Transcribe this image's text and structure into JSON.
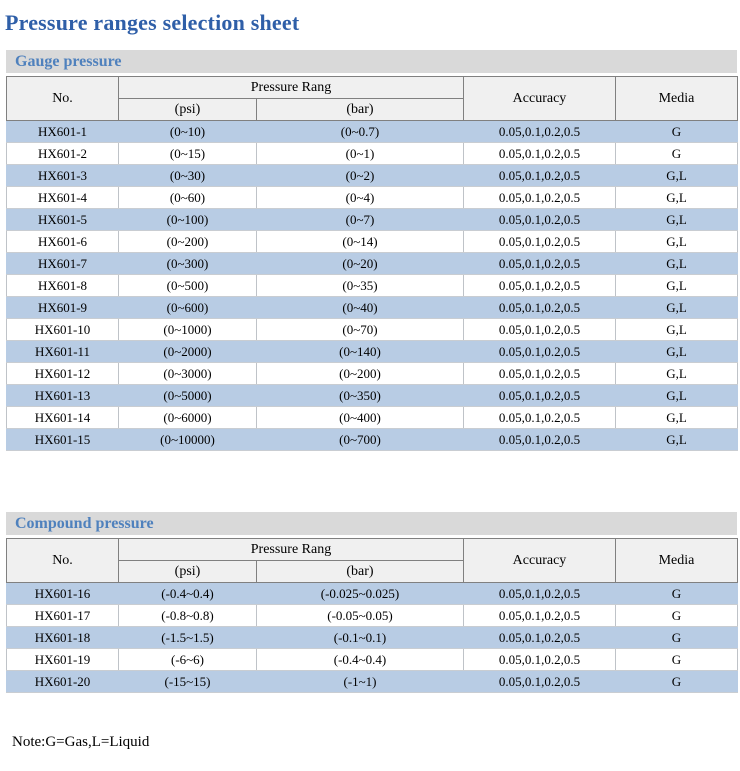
{
  "page": {
    "title": "Pressure ranges selection sheet",
    "note": "Note:G=Gas,L=Liquid"
  },
  "colors": {
    "title_blue": "#2f5fa8",
    "section_title_blue": "#4f81bd",
    "section_band_gray": "#d9d9d9",
    "row_alt_blue": "#b8cce4",
    "header_cell_gray": "#f0f0f0"
  },
  "tables": [
    {
      "section_title": "Gauge pressure",
      "headers": {
        "no": "No.",
        "pressure_range": "Pressure Rang",
        "psi": "(psi)",
        "bar": "(bar)",
        "accuracy": "Accuracy",
        "media": "Media"
      },
      "rows": [
        {
          "no": "HX601-1",
          "psi": "(0~10)",
          "bar": "(0~0.7)",
          "accuracy": "0.05,0.1,0.2,0.5",
          "media": "G"
        },
        {
          "no": "HX601-2",
          "psi": "(0~15)",
          "bar": "(0~1)",
          "accuracy": "0.05,0.1,0.2,0.5",
          "media": "G"
        },
        {
          "no": "HX601-3",
          "psi": "(0~30)",
          "bar": "(0~2)",
          "accuracy": "0.05,0.1,0.2,0.5",
          "media": "G,L"
        },
        {
          "no": "HX601-4",
          "psi": "(0~60)",
          "bar": "(0~4)",
          "accuracy": "0.05,0.1,0.2,0.5",
          "media": "G,L"
        },
        {
          "no": "HX601-5",
          "psi": "(0~100)",
          "bar": "(0~7)",
          "accuracy": "0.05,0.1,0.2,0.5",
          "media": "G,L"
        },
        {
          "no": "HX601-6",
          "psi": "(0~200)",
          "bar": "(0~14)",
          "accuracy": "0.05,0.1,0.2,0.5",
          "media": "G,L"
        },
        {
          "no": "HX601-7",
          "psi": "(0~300)",
          "bar": "(0~20)",
          "accuracy": "0.05,0.1,0.2,0.5",
          "media": "G,L"
        },
        {
          "no": "HX601-8",
          "psi": "(0~500)",
          "bar": "(0~35)",
          "accuracy": "0.05,0.1,0.2,0.5",
          "media": "G,L"
        },
        {
          "no": "HX601-9",
          "psi": "(0~600)",
          "bar": "(0~40)",
          "accuracy": "0.05,0.1,0.2,0.5",
          "media": "G,L"
        },
        {
          "no": "HX601-10",
          "psi": "(0~1000)",
          "bar": "(0~70)",
          "accuracy": "0.05,0.1,0.2,0.5",
          "media": "G,L"
        },
        {
          "no": "HX601-11",
          "psi": "(0~2000)",
          "bar": "(0~140)",
          "accuracy": "0.05,0.1,0.2,0.5",
          "media": "G,L"
        },
        {
          "no": "HX601-12",
          "psi": "(0~3000)",
          "bar": "(0~200)",
          "accuracy": "0.05,0.1,0.2,0.5",
          "media": "G,L"
        },
        {
          "no": "HX601-13",
          "psi": "(0~5000)",
          "bar": "(0~350)",
          "accuracy": "0.05,0.1,0.2,0.5",
          "media": "G,L"
        },
        {
          "no": "HX601-14",
          "psi": "(0~6000)",
          "bar": "(0~400)",
          "accuracy": "0.05,0.1,0.2,0.5",
          "media": "G,L"
        },
        {
          "no": "HX601-15",
          "psi": "(0~10000)",
          "bar": "(0~700)",
          "accuracy": "0.05,0.1,0.2,0.5",
          "media": "G,L"
        }
      ]
    },
    {
      "section_title": "Compound pressure",
      "headers": {
        "no": "No.",
        "pressure_range": "Pressure Rang",
        "psi": "(psi)",
        "bar": "(bar)",
        "accuracy": "Accuracy",
        "media": "Media"
      },
      "rows": [
        {
          "no": "HX601-16",
          "psi": "(-0.4~0.4)",
          "bar": "(-0.025~0.025)",
          "accuracy": "0.05,0.1,0.2,0.5",
          "media": "G"
        },
        {
          "no": "HX601-17",
          "psi": "(-0.8~0.8)",
          "bar": "(-0.05~0.05)",
          "accuracy": "0.05,0.1,0.2,0.5",
          "media": "G"
        },
        {
          "no": "HX601-18",
          "psi": "(-1.5~1.5)",
          "bar": "(-0.1~0.1)",
          "accuracy": "0.05,0.1,0.2,0.5",
          "media": "G"
        },
        {
          "no": "HX601-19",
          "psi": "(-6~6)",
          "bar": "(-0.4~0.4)",
          "accuracy": "0.05,0.1,0.2,0.5",
          "media": "G"
        },
        {
          "no": "HX601-20",
          "psi": "(-15~15)",
          "bar": "(-1~1)",
          "accuracy": "0.05,0.1,0.2,0.5",
          "media": "G"
        }
      ]
    }
  ]
}
